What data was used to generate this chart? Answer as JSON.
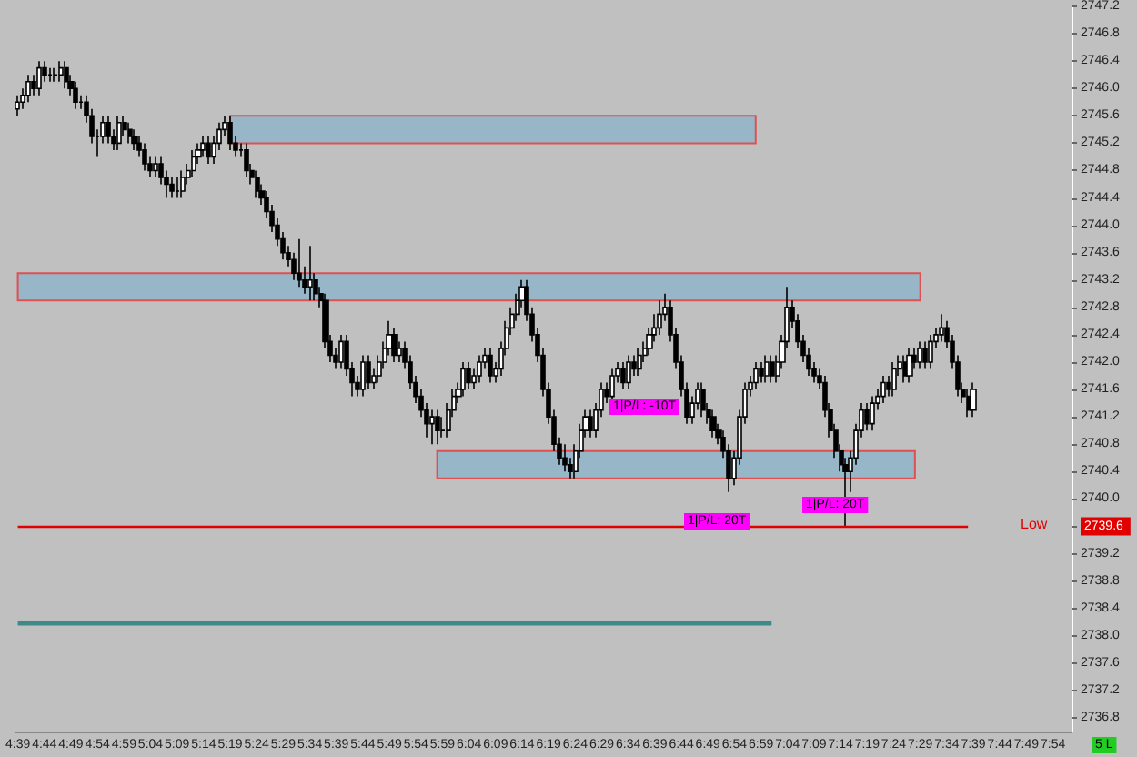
{
  "chart_data": {
    "type": "candlestick",
    "categories": [
      "4:39",
      null,
      null,
      null,
      null,
      "4:44",
      null,
      null,
      null,
      null,
      "4:49",
      null,
      null,
      null,
      null,
      "4:54",
      null,
      null,
      null,
      null,
      "4:59",
      null,
      null,
      null,
      null,
      "5:04",
      null,
      null,
      null,
      null,
      "5:09",
      null,
      null,
      null,
      null,
      "5:14",
      null,
      null,
      null,
      null,
      "5:19",
      null,
      null,
      null,
      null,
      "5:24",
      null,
      null,
      null,
      null,
      "5:29",
      null,
      null,
      null,
      null,
      "5:34",
      null,
      null,
      null,
      null,
      "5:39",
      null,
      null,
      null,
      null,
      "5:44",
      null,
      null,
      null,
      null,
      "5:49",
      null,
      null,
      null,
      null,
      "5:54",
      null,
      null,
      null,
      null,
      "5:59",
      null,
      null,
      null,
      null,
      "6:04",
      null,
      null,
      null,
      null,
      "6:09",
      null,
      null,
      null,
      null,
      "6:14",
      null,
      null,
      null,
      null,
      "6:19",
      null,
      null,
      null,
      null,
      "6:24",
      null,
      null,
      null,
      null,
      "6:29",
      null,
      null,
      null,
      null,
      "6:34",
      null,
      null,
      null,
      null,
      "6:39",
      null,
      null,
      null,
      null,
      "6:44",
      null,
      null,
      null,
      null,
      "6:49",
      null,
      null,
      null,
      null,
      "6:54",
      null,
      null,
      null,
      null,
      "6:59",
      null,
      null,
      null,
      null,
      "7:04",
      null,
      null,
      null,
      null,
      "7:09",
      null,
      null,
      null,
      null,
      "7:14",
      null,
      null,
      null,
      null,
      "7:19",
      null,
      null,
      null,
      null,
      "7:24",
      null,
      null,
      null,
      null,
      "7:29",
      null,
      null,
      null,
      null,
      "7:34",
      null,
      null,
      null,
      null,
      "7:39",
      null,
      null,
      null,
      null,
      "7:44",
      null,
      null,
      null,
      null,
      "7:49",
      null,
      null,
      null,
      null,
      "7:54",
      null,
      null,
      null
    ],
    "ohlc": [
      [
        2745.7,
        2745.9,
        2745.6,
        2745.8
      ],
      [
        2745.8,
        2746.0,
        2745.7,
        2745.9
      ],
      [
        2745.9,
        2746.2,
        2745.8,
        2746.1
      ],
      [
        2746.1,
        2746.2,
        2745.9,
        2746.0
      ],
      [
        2746.0,
        2746.4,
        2745.9,
        2746.3
      ],
      [
        2746.3,
        2746.4,
        2746.1,
        2746.2
      ],
      [
        2746.2,
        2746.3,
        2746.1,
        2746.2
      ],
      [
        2746.2,
        2746.3,
        2746.1,
        2746.2
      ],
      [
        2746.2,
        2746.4,
        2746.1,
        2746.3
      ],
      [
        2746.3,
        2746.4,
        2746.0,
        2746.1
      ],
      [
        2746.1,
        2746.2,
        2745.9,
        2746.0
      ],
      [
        2746.0,
        2746.1,
        2745.7,
        2745.8
      ],
      [
        2745.8,
        2745.9,
        2745.7,
        2745.8
      ],
      [
        2745.8,
        2745.9,
        2745.5,
        2745.6
      ],
      [
        2745.6,
        2745.7,
        2745.2,
        2745.3
      ],
      [
        2745.3,
        2745.4,
        2745.0,
        2745.3
      ],
      [
        2745.3,
        2745.6,
        2745.2,
        2745.5
      ],
      [
        2745.5,
        2745.6,
        2745.2,
        2745.3
      ],
      [
        2745.3,
        2745.4,
        2745.1,
        2745.2
      ],
      [
        2745.2,
        2745.6,
        2745.1,
        2745.5
      ],
      [
        2745.5,
        2745.6,
        2745.3,
        2745.4
      ],
      [
        2745.4,
        2745.5,
        2745.2,
        2745.3
      ],
      [
        2745.3,
        2745.4,
        2745.1,
        2745.2
      ],
      [
        2745.2,
        2745.3,
        2745.0,
        2745.1
      ],
      [
        2745.1,
        2745.2,
        2744.8,
        2744.9
      ],
      [
        2744.9,
        2745.0,
        2744.7,
        2744.8
      ],
      [
        2744.8,
        2745.0,
        2744.7,
        2744.9
      ],
      [
        2744.9,
        2745.0,
        2744.6,
        2744.7
      ],
      [
        2744.7,
        2744.8,
        2744.4,
        2744.6
      ],
      [
        2744.6,
        2744.7,
        2744.4,
        2744.5
      ],
      [
        2744.5,
        2744.7,
        2744.4,
        2744.5
      ],
      [
        2744.5,
        2744.8,
        2744.4,
        2744.7
      ],
      [
        2744.7,
        2744.9,
        2744.6,
        2744.8
      ],
      [
        2744.8,
        2745.1,
        2744.7,
        2745.0
      ],
      [
        2745.0,
        2745.2,
        2744.9,
        2745.1
      ],
      [
        2745.1,
        2745.3,
        2745.0,
        2745.2
      ],
      [
        2745.2,
        2745.3,
        2744.9,
        2745.0
      ],
      [
        2745.0,
        2745.3,
        2744.9,
        2745.2
      ],
      [
        2745.2,
        2745.5,
        2745.1,
        2745.4
      ],
      [
        2745.4,
        2745.6,
        2745.3,
        2745.5
      ],
      [
        2745.5,
        2745.6,
        2745.1,
        2745.2
      ],
      [
        2745.2,
        2745.3,
        2745.0,
        2745.1
      ],
      [
        2745.1,
        2745.2,
        2745.0,
        2745.1
      ],
      [
        2745.1,
        2745.2,
        2744.7,
        2744.8
      ],
      [
        2744.8,
        2744.9,
        2744.6,
        2744.7
      ],
      [
        2744.7,
        2744.8,
        2744.4,
        2744.5
      ],
      [
        2744.5,
        2744.6,
        2744.3,
        2744.4
      ],
      [
        2744.4,
        2744.5,
        2744.1,
        2744.2
      ],
      [
        2744.2,
        2744.3,
        2743.9,
        2744.0
      ],
      [
        2744.0,
        2744.1,
        2743.7,
        2743.8
      ],
      [
        2743.8,
        2743.9,
        2743.5,
        2743.6
      ],
      [
        2743.6,
        2743.7,
        2743.4,
        2743.5
      ],
      [
        2743.5,
        2743.6,
        2743.2,
        2743.3
      ],
      [
        2743.3,
        2743.8,
        2743.1,
        2743.2
      ],
      [
        2743.2,
        2743.4,
        2743.0,
        2743.1
      ],
      [
        2743.1,
        2743.7,
        2742.9,
        2743.2
      ],
      [
        2743.2,
        2743.3,
        2742.9,
        2743.0
      ],
      [
        2743.0,
        2743.1,
        2742.8,
        2742.9
      ],
      [
        2742.9,
        2743.0,
        2742.2,
        2742.3
      ],
      [
        2742.3,
        2742.4,
        2742.0,
        2742.1
      ],
      [
        2742.1,
        2742.2,
        2741.9,
        2742.0
      ],
      [
        2742.0,
        2742.4,
        2741.9,
        2742.3
      ],
      [
        2742.3,
        2742.4,
        2741.8,
        2741.9
      ],
      [
        2741.9,
        2742.0,
        2741.5,
        2741.7
      ],
      [
        2741.7,
        2741.8,
        2741.5,
        2741.6
      ],
      [
        2741.6,
        2742.1,
        2741.5,
        2742.0
      ],
      [
        2742.0,
        2742.1,
        2741.6,
        2741.7
      ],
      [
        2741.7,
        2741.9,
        2741.6,
        2741.8
      ],
      [
        2741.8,
        2742.1,
        2741.7,
        2742.0
      ],
      [
        2742.0,
        2742.3,
        2741.9,
        2742.2
      ],
      [
        2742.2,
        2742.6,
        2742.1,
        2742.4
      ],
      [
        2742.4,
        2742.5,
        2742.0,
        2742.1
      ],
      [
        2742.1,
        2742.3,
        2742.0,
        2742.2
      ],
      [
        2742.2,
        2742.3,
        2741.9,
        2742.0
      ],
      [
        2742.0,
        2742.1,
        2741.6,
        2741.7
      ],
      [
        2741.7,
        2741.8,
        2741.4,
        2741.5
      ],
      [
        2741.5,
        2741.6,
        2741.2,
        2741.3
      ],
      [
        2741.3,
        2741.4,
        2740.9,
        2741.1
      ],
      [
        2741.1,
        2741.3,
        2740.8,
        2741.2
      ],
      [
        2741.2,
        2741.3,
        2740.8,
        2741.0
      ],
      [
        2741.0,
        2741.2,
        2740.9,
        2741.0
      ],
      [
        2741.0,
        2741.4,
        2740.9,
        2741.3
      ],
      [
        2741.3,
        2741.6,
        2741.2,
        2741.5
      ],
      [
        2741.5,
        2741.7,
        2741.4,
        2741.6
      ],
      [
        2741.6,
        2742.0,
        2741.5,
        2741.9
      ],
      [
        2741.9,
        2742.0,
        2741.6,
        2741.7
      ],
      [
        2741.7,
        2741.9,
        2741.6,
        2741.8
      ],
      [
        2741.8,
        2742.1,
        2741.7,
        2742.0
      ],
      [
        2742.0,
        2742.2,
        2741.9,
        2742.1
      ],
      [
        2742.1,
        2742.2,
        2741.7,
        2741.8
      ],
      [
        2741.8,
        2742.0,
        2741.7,
        2741.9
      ],
      [
        2741.9,
        2742.3,
        2741.8,
        2742.2
      ],
      [
        2742.2,
        2742.6,
        2742.1,
        2742.5
      ],
      [
        2742.5,
        2742.8,
        2742.4,
        2742.7
      ],
      [
        2742.7,
        2743.0,
        2742.6,
        2742.9
      ],
      [
        2742.9,
        2743.2,
        2742.8,
        2743.1
      ],
      [
        2743.1,
        2743.2,
        2742.6,
        2742.7
      ],
      [
        2742.7,
        2742.8,
        2742.3,
        2742.4
      ],
      [
        2742.4,
        2742.5,
        2742.0,
        2742.1
      ],
      [
        2742.1,
        2742.2,
        2741.5,
        2741.6
      ],
      [
        2741.6,
        2741.7,
        2741.1,
        2741.2
      ],
      [
        2741.2,
        2741.3,
        2740.7,
        2740.8
      ],
      [
        2740.8,
        2740.9,
        2740.5,
        2740.6
      ],
      [
        2740.6,
        2740.8,
        2740.4,
        2740.5
      ],
      [
        2740.5,
        2740.6,
        2740.3,
        2740.4
      ],
      [
        2740.4,
        2740.8,
        2740.3,
        2740.7
      ],
      [
        2740.7,
        2741.1,
        2740.6,
        2741.0
      ],
      [
        2741.0,
        2741.3,
        2740.9,
        2741.2
      ],
      [
        2741.2,
        2741.3,
        2740.9,
        2741.0
      ],
      [
        2741.0,
        2741.4,
        2740.9,
        2741.3
      ],
      [
        2741.3,
        2741.7,
        2741.2,
        2741.6
      ],
      [
        2741.6,
        2741.7,
        2741.4,
        2741.5
      ],
      [
        2741.5,
        2741.9,
        2741.4,
        2741.8
      ],
      [
        2741.8,
        2742.0,
        2741.7,
        2741.9
      ],
      [
        2741.9,
        2742.0,
        2741.6,
        2741.7
      ],
      [
        2741.7,
        2742.1,
        2741.6,
        2742.0
      ],
      [
        2742.0,
        2742.1,
        2741.8,
        2741.9
      ],
      [
        2741.9,
        2742.2,
        2741.8,
        2742.1
      ],
      [
        2742.1,
        2742.3,
        2742.0,
        2742.2
      ],
      [
        2742.2,
        2742.5,
        2742.1,
        2742.4
      ],
      [
        2742.4,
        2742.7,
        2742.3,
        2742.5
      ],
      [
        2742.5,
        2742.9,
        2742.4,
        2742.7
      ],
      [
        2742.7,
        2743.0,
        2742.6,
        2742.8
      ],
      [
        2742.8,
        2742.9,
        2742.3,
        2742.4
      ],
      [
        2742.4,
        2742.5,
        2741.9,
        2742.0
      ],
      [
        2742.0,
        2742.1,
        2741.5,
        2741.6
      ],
      [
        2741.6,
        2741.7,
        2741.1,
        2741.2
      ],
      [
        2741.2,
        2741.5,
        2741.1,
        2741.4
      ],
      [
        2741.4,
        2741.7,
        2741.3,
        2741.6
      ],
      [
        2741.6,
        2741.7,
        2741.2,
        2741.3
      ],
      [
        2741.3,
        2741.4,
        2741.1,
        2741.2
      ],
      [
        2741.2,
        2741.3,
        2740.9,
        2741.0
      ],
      [
        2741.0,
        2741.1,
        2740.8,
        2740.9
      ],
      [
        2740.9,
        2741.0,
        2740.6,
        2740.7
      ],
      [
        2740.7,
        2740.8,
        2740.1,
        2740.3
      ],
      [
        2740.3,
        2740.7,
        2740.2,
        2740.6
      ],
      [
        2740.6,
        2741.3,
        2740.5,
        2741.2
      ],
      [
        2741.2,
        2741.7,
        2741.1,
        2741.6
      ],
      [
        2741.6,
        2741.8,
        2741.5,
        2741.7
      ],
      [
        2741.7,
        2742.0,
        2741.6,
        2741.9
      ],
      [
        2741.9,
        2742.0,
        2741.7,
        2741.8
      ],
      [
        2741.8,
        2742.1,
        2741.7,
        2742.0
      ],
      [
        2742.0,
        2742.1,
        2741.7,
        2741.8
      ],
      [
        2741.8,
        2742.1,
        2741.7,
        2742.0
      ],
      [
        2742.0,
        2742.4,
        2741.9,
        2742.3
      ],
      [
        2742.3,
        2743.1,
        2742.2,
        2742.8
      ],
      [
        2742.8,
        2742.9,
        2742.5,
        2742.6
      ],
      [
        2742.6,
        2742.7,
        2742.2,
        2742.3
      ],
      [
        2742.3,
        2742.4,
        2742.0,
        2742.1
      ],
      [
        2742.1,
        2742.2,
        2741.8,
        2741.9
      ],
      [
        2741.9,
        2742.0,
        2741.7,
        2741.8
      ],
      [
        2741.8,
        2741.9,
        2741.6,
        2741.7
      ],
      [
        2741.7,
        2741.8,
        2741.2,
        2741.3
      ],
      [
        2741.3,
        2741.4,
        2740.9,
        2741.0
      ],
      [
        2741.0,
        2741.1,
        2740.6,
        2740.7
      ],
      [
        2740.7,
        2740.8,
        2740.4,
        2740.5
      ],
      [
        2740.5,
        2740.6,
        2739.6,
        2740.4
      ],
      [
        2740.4,
        2740.7,
        2740.1,
        2740.6
      ],
      [
        2740.6,
        2741.1,
        2740.5,
        2741.0
      ],
      [
        2741.0,
        2741.4,
        2740.9,
        2741.3
      ],
      [
        2741.3,
        2741.4,
        2741.0,
        2741.1
      ],
      [
        2741.1,
        2741.5,
        2741.0,
        2741.4
      ],
      [
        2741.4,
        2741.6,
        2741.3,
        2741.5
      ],
      [
        2741.5,
        2741.8,
        2741.4,
        2741.7
      ],
      [
        2741.7,
        2741.8,
        2741.5,
        2741.6
      ],
      [
        2741.6,
        2742.0,
        2741.5,
        2741.9
      ],
      [
        2741.9,
        2742.1,
        2741.8,
        2742.0
      ],
      [
        2742.0,
        2742.1,
        2741.7,
        2741.8
      ],
      [
        2741.8,
        2742.2,
        2741.7,
        2742.1
      ],
      [
        2742.1,
        2742.2,
        2741.9,
        2742.0
      ],
      [
        2742.0,
        2742.3,
        2741.9,
        2742.2
      ],
      [
        2742.2,
        2742.3,
        2741.9,
        2742.0
      ],
      [
        2742.0,
        2742.4,
        2741.9,
        2742.3
      ],
      [
        2742.3,
        2742.5,
        2742.2,
        2742.4
      ],
      [
        2742.4,
        2742.7,
        2742.3,
        2742.5
      ],
      [
        2742.5,
        2742.6,
        2742.2,
        2742.3
      ],
      [
        2742.3,
        2742.4,
        2741.9,
        2742.0
      ],
      [
        2742.0,
        2742.1,
        2741.5,
        2741.6
      ],
      [
        2741.6,
        2741.7,
        2741.4,
        2741.5
      ],
      [
        2741.5,
        2741.6,
        2741.2,
        2741.3
      ],
      [
        2741.3,
        2741.7,
        2741.2,
        2741.6
      ],
      null,
      null,
      null,
      null,
      null,
      null,
      null,
      null,
      null,
      null,
      null,
      null,
      null,
      null,
      null,
      null,
      null,
      null
    ],
    "ylim": [
      2736.6,
      2747.2
    ],
    "yticks": [
      2736.8,
      2737.2,
      2737.6,
      {
        "value": 2738,
        "label": "2738.0"
      },
      2738.4,
      2738.8,
      2739.2,
      2739.6,
      {
        "value": 2740,
        "label": "2740.0"
      },
      2740.4,
      2740.8,
      2741.2,
      2741.6,
      {
        "value": 2742,
        "label": "2742.0"
      },
      2742.4,
      2742.8,
      2743.2,
      2743.6,
      {
        "value": 2744,
        "label": "2744.0"
      },
      2744.4,
      2744.8,
      2745.2,
      2745.6,
      {
        "value": 2746,
        "label": "2746.0"
      },
      2746.4,
      2746.8,
      2747.2
    ],
    "grid": false,
    "bands": [
      {
        "axis": "y",
        "from": 2745.2,
        "to": 2745.6,
        "color": "#97b7c9"
      },
      {
        "axis": "y",
        "from": 2742.9,
        "to": 2743.3,
        "color": "#97b7c9"
      },
      {
        "axis": "y",
        "from": 2740.3,
        "to": 2740.7,
        "color": "#97b7c9"
      }
    ],
    "ref_lines": [
      {
        "axis": "y",
        "value": 2739.6,
        "label": "Low",
        "color": "#e00000"
      },
      {
        "axis": "y",
        "value": 2738.2,
        "color": "#3d8a86"
      }
    ],
    "annotations": [
      "1|P/L: -10T",
      "1|P/L: 20T",
      "1|P/L: 20T",
      "5 L"
    ]
  }
}
